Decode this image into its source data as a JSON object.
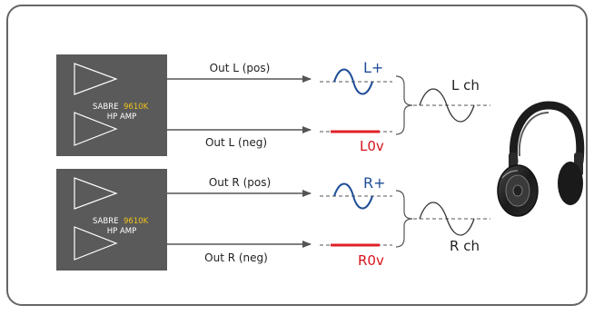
{
  "amps": [
    {
      "brand": "SABRE",
      "chip": "9610K",
      "subtitle": "HP AMP",
      "out_pos_label": "Out L (pos)",
      "out_neg_label": "Out L (neg)",
      "pos_signal_label": "L+",
      "neg_signal_label": "L0v",
      "channel_label": "L ch"
    },
    {
      "brand": "SABRE",
      "chip": "9610K",
      "subtitle": "HP AMP",
      "out_pos_label": "Out R (pos)",
      "out_neg_label": "Out R (neg)",
      "pos_signal_label": "R+",
      "neg_signal_label": "R0v",
      "channel_label": "R ch"
    }
  ],
  "colors": {
    "frame": "#666666",
    "amp_box": "#5a5a5a",
    "chip_text": "#f0c419",
    "wave_blue": "#1f4e96",
    "zero_red": "#e0202a",
    "neg_label_red": "#d8131c",
    "wire": "#555555",
    "text": "#222222"
  },
  "icons": {
    "amplifier": "triangle-amplifier-icon",
    "headphones": "headphones-icon"
  }
}
